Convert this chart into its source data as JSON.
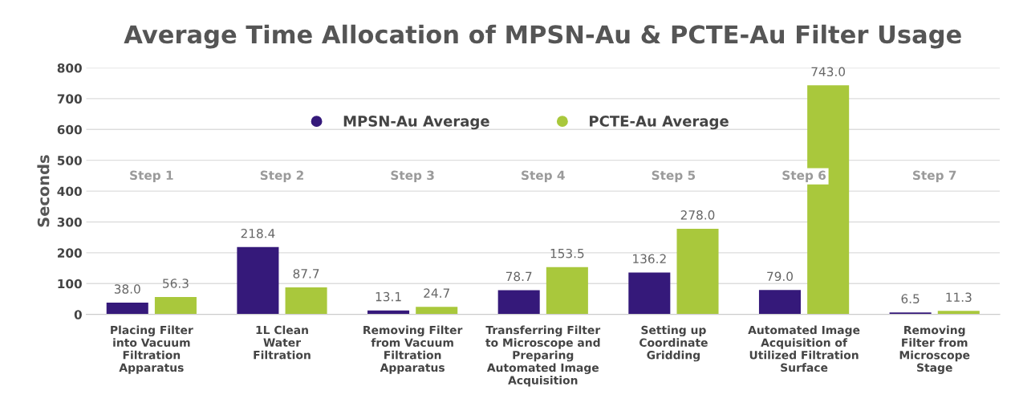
{
  "chart_data": {
    "type": "bar",
    "title": "Average Time Allocation of MPSN-Au & PCTE-Au Filter Usage",
    "ylabel": "Seconds",
    "categories": [
      "Placing Filter\ninto Vacuum\nFiltration\nApparatus",
      "1L Clean\nWater\nFiltration",
      "Removing Filter\nfrom Vacuum\nFiltration\nApparatus",
      "Transferring Filter\nto Microscope and\nPreparing\nAutomated Image\nAcquisition",
      "Setting up\nCoordinate\nGridding",
      "Automated Image\nAcquisition of\nUtilized Filtration\nSurface",
      "Removing\nFilter from\nMicroscope\nStage"
    ],
    "series": [
      {
        "name": "MPSN-Au Average",
        "color": "#35197a",
        "values": [
          38.0,
          218.4,
          13.1,
          78.7,
          136.2,
          79.0,
          6.5
        ],
        "value_labels": [
          "38.0",
          "218.4",
          "13.1",
          "78.7",
          "136.2",
          "79.0",
          "6.5"
        ]
      },
      {
        "name": "PCTE-Au Average",
        "color": "#a9c83c",
        "values": [
          56.3,
          87.7,
          24.7,
          153.5,
          278.0,
          743.0,
          11.3
        ],
        "value_labels": [
          "56.3",
          "87.7",
          "24.7",
          "153.5",
          "278.0",
          "743.0",
          "11.3"
        ]
      }
    ],
    "annotations": [
      "Step 1",
      "Step 2",
      "Step 3",
      "Step 4",
      "Step 5",
      "Step 6",
      "Step 7"
    ],
    "ylim": [
      0,
      800
    ],
    "yticks": [
      0,
      100,
      200,
      300,
      400,
      500,
      600,
      700,
      800
    ],
    "grid": "y",
    "legend": "top",
    "marker": "circle"
  }
}
